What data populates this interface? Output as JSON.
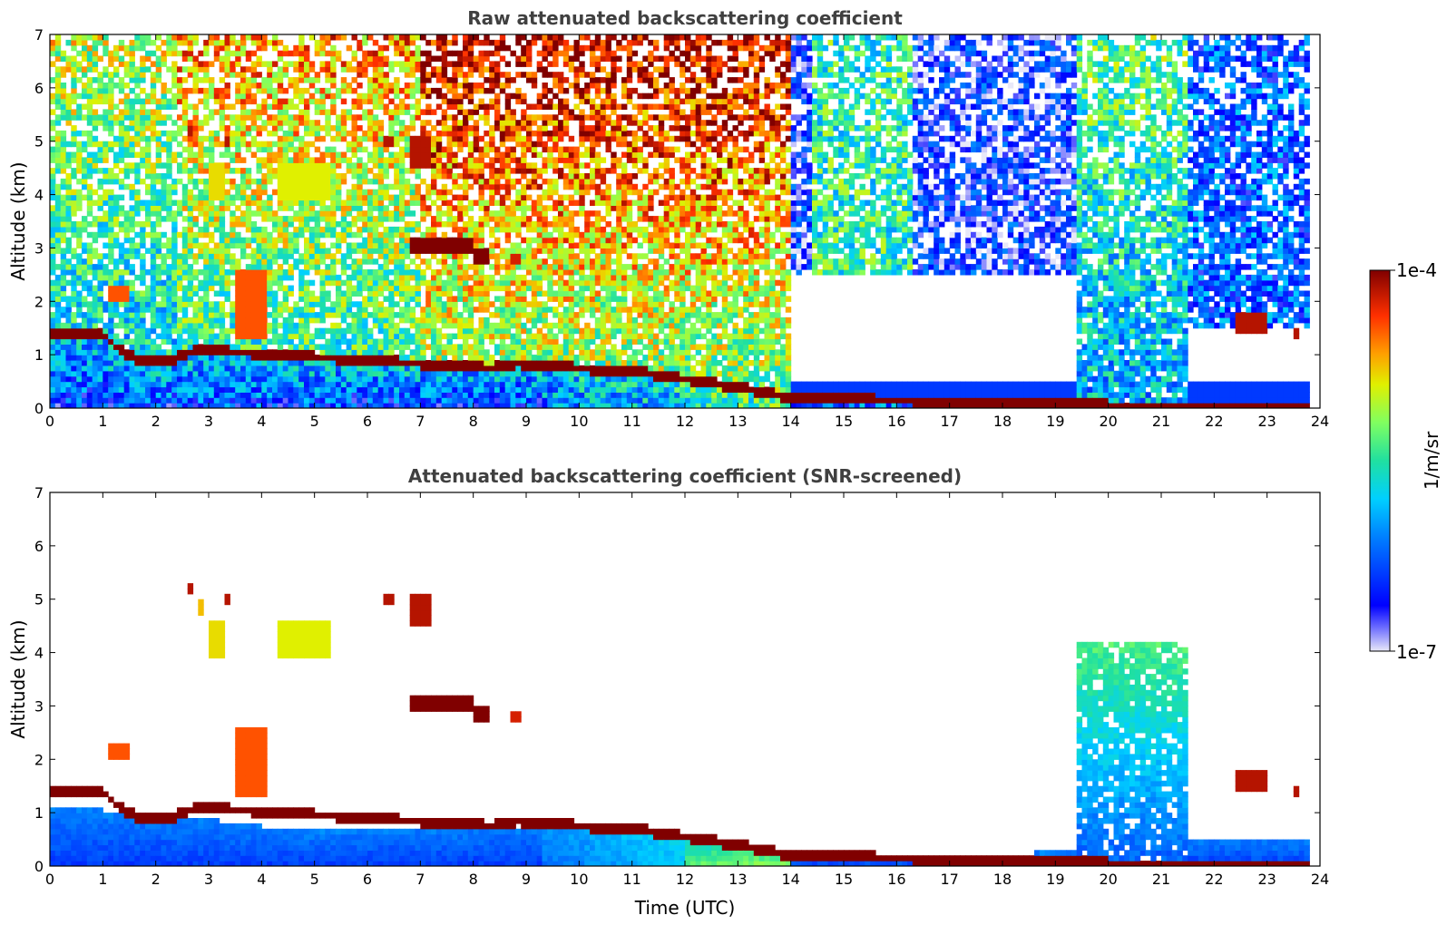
{
  "chart_data": [
    {
      "type": "heatmap",
      "title": "Raw attenuated backscattering coefficient",
      "xlabel": "",
      "ylabel": "Altitude (km)",
      "xlim": [
        0,
        24
      ],
      "ylim": [
        0,
        7
      ],
      "xticks": [
        "0",
        "1",
        "2",
        "3",
        "4",
        "5",
        "6",
        "7",
        "8",
        "9",
        "10",
        "11",
        "12",
        "13",
        "14",
        "15",
        "16",
        "17",
        "18",
        "19",
        "20",
        "21",
        "22",
        "23",
        "24"
      ],
      "yticks": [
        "0",
        "1",
        "2",
        "3",
        "4",
        "5",
        "6",
        "7"
      ],
      "data_end_time": 23.8,
      "boundary_layer_top_km": [
        {
          "t": 0,
          "z": 1.4
        },
        {
          "t": 1,
          "z": 1.4
        },
        {
          "t": 1.3,
          "z": 1.1
        },
        {
          "t": 1.7,
          "z": 0.9
        },
        {
          "t": 2.3,
          "z": 0.9
        },
        {
          "t": 2.8,
          "z": 1.1
        },
        {
          "t": 8.4,
          "z": 0.75
        },
        {
          "t": 8.8,
          "z": 0.85
        },
        {
          "t": 10,
          "z": 0.75
        },
        {
          "t": 11,
          "z": 0.7
        },
        {
          "t": 12,
          "z": 0.55
        },
        {
          "t": 13,
          "z": 0.4
        },
        {
          "t": 13.5,
          "z": 0.3
        },
        {
          "t": 14,
          "z": 0.2
        },
        {
          "t": 16,
          "z": 0.15
        },
        {
          "t": 18,
          "z": 0.08
        },
        {
          "t": 20,
          "z": 0.06
        },
        {
          "t": 22,
          "z": 0.05
        },
        {
          "t": 23.5,
          "z": 0.05
        }
      ],
      "cloud_layers": [
        {
          "t0": 2.6,
          "t1": 2.7,
          "z0": 5.1,
          "z1": 5.3,
          "level": 0.95
        },
        {
          "t0": 2.8,
          "t1": 2.9,
          "z0": 4.7,
          "z1": 5.0,
          "level": 0.75
        },
        {
          "t0": 3.0,
          "t1": 3.3,
          "z0": 3.9,
          "z1": 4.6,
          "level": 0.72
        },
        {
          "t0": 3.3,
          "t1": 3.4,
          "z0": 4.9,
          "z1": 5.1,
          "level": 0.95
        },
        {
          "t0": 4.3,
          "t1": 5.3,
          "z0": 3.9,
          "z1": 4.6,
          "level": 0.7
        },
        {
          "t0": 6.3,
          "t1": 6.5,
          "z0": 4.9,
          "z1": 5.1,
          "level": 0.95
        },
        {
          "t0": 6.8,
          "t1": 7.2,
          "z0": 4.5,
          "z1": 5.1,
          "level": 0.95
        },
        {
          "t0": 6.8,
          "t1": 8.0,
          "z0": 2.9,
          "z1": 3.2,
          "level": 1.0
        },
        {
          "t0": 8.0,
          "t1": 8.3,
          "z0": 2.7,
          "z1": 3.0,
          "level": 1.0
        },
        {
          "t0": 8.7,
          "t1": 8.85,
          "z0": 2.7,
          "z1": 2.85,
          "level": 0.92
        },
        {
          "t0": 3.5,
          "t1": 4.1,
          "z0": 1.3,
          "z1": 2.6,
          "level": 0.85
        },
        {
          "t0": 1.1,
          "t1": 1.5,
          "z0": 2.0,
          "z1": 2.3,
          "level": 0.85
        },
        {
          "t0": 22.4,
          "t1": 23.0,
          "z0": 1.4,
          "z1": 1.8,
          "level": 0.95
        },
        {
          "t0": 23.5,
          "t1": 23.6,
          "z0": 1.35,
          "z1": 1.5,
          "level": 0.95
        }
      ],
      "colorbar": {
        "min_label": "1e-7",
        "max_label": "1e-4",
        "label": "1/m/sr",
        "scale": "log"
      }
    },
    {
      "type": "heatmap",
      "title": "Attenuated backscattering coefficient (SNR-screened)",
      "xlabel": "Time (UTC)",
      "ylabel": "Altitude (km)",
      "xlim": [
        0,
        24
      ],
      "ylim": [
        0,
        7
      ],
      "xticks": [
        "0",
        "1",
        "2",
        "3",
        "4",
        "5",
        "6",
        "7",
        "8",
        "9",
        "10",
        "11",
        "12",
        "13",
        "14",
        "15",
        "16",
        "17",
        "18",
        "19",
        "20",
        "21",
        "22",
        "23",
        "24"
      ],
      "yticks": [
        "0",
        "1",
        "2",
        "3",
        "4",
        "5",
        "6",
        "7"
      ],
      "screened_signal_top_km": [
        {
          "t": 0,
          "z": 1.1
        },
        {
          "t": 2,
          "z": 1.0
        },
        {
          "t": 4,
          "z": 0.75
        },
        {
          "t": 5,
          "z": 0.65
        },
        {
          "t": 8.4,
          "z": 0.75
        },
        {
          "t": 12,
          "z": 0.55
        },
        {
          "t": 14,
          "z": 0.2
        },
        {
          "t": 17,
          "z": 0.15
        },
        {
          "t": 19.4,
          "z": 0.3
        },
        {
          "t": 19.4,
          "z": 4.2
        },
        {
          "t": 21.5,
          "z": 4.2
        },
        {
          "t": 21.5,
          "z": 0.5
        },
        {
          "t": 23.8,
          "z": 0.5
        }
      ]
    }
  ],
  "colorbar": {
    "max_label": "1e-4",
    "min_label": "1e-7",
    "label": "1/m/sr",
    "colormap": "jet",
    "scale": "log"
  }
}
